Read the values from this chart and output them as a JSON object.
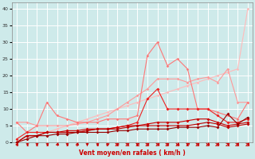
{
  "x": [
    0,
    1,
    2,
    3,
    4,
    5,
    6,
    7,
    8,
    9,
    10,
    11,
    12,
    13,
    14,
    15,
    16,
    17,
    18,
    19,
    20,
    21,
    22,
    23
  ],
  "series": [
    {
      "name": "line1_lightest",
      "color": "#ffbbbb",
      "linewidth": 0.8,
      "markersize": 1.8,
      "y": [
        0,
        1,
        2,
        3,
        4,
        5,
        6,
        7,
        8,
        9,
        10,
        11,
        12,
        13,
        14,
        15,
        16,
        17,
        18,
        19,
        20,
        21,
        22,
        40
      ]
    },
    {
      "name": "line2_light_pink",
      "color": "#ff9999",
      "linewidth": 0.8,
      "markersize": 1.8,
      "y": [
        6,
        6,
        5,
        5,
        5,
        5,
        5.5,
        6,
        7,
        8,
        10,
        12,
        14,
        16,
        19,
        19,
        19,
        18,
        19,
        19.5,
        18,
        22,
        12,
        12
      ]
    },
    {
      "name": "line3_medium",
      "color": "#ff7777",
      "linewidth": 0.8,
      "markersize": 1.8,
      "y": [
        6,
        3,
        5,
        12,
        8,
        7,
        6,
        6,
        6,
        7,
        7,
        7,
        8,
        26,
        30,
        23,
        25,
        22,
        10,
        10,
        9,
        8,
        7,
        12
      ]
    },
    {
      "name": "line4_red",
      "color": "#ee2222",
      "linewidth": 0.8,
      "markersize": 2.0,
      "y": [
        1,
        3,
        3,
        3,
        3,
        3,
        3,
        3.5,
        4,
        4,
        4.5,
        5,
        6,
        13,
        16,
        10,
        10,
        10,
        10,
        10,
        8,
        6,
        6,
        7
      ]
    },
    {
      "name": "line5_dark_red1",
      "color": "#cc0000",
      "linewidth": 0.8,
      "markersize": 2.0,
      "y": [
        0,
        2,
        2,
        3,
        3,
        3.5,
        3.5,
        4,
        4,
        4,
        4.5,
        5,
        5,
        5.5,
        6,
        6,
        6,
        6.5,
        7,
        7,
        6,
        5,
        5.5,
        6
      ]
    },
    {
      "name": "line6_dark_red2",
      "color": "#bb0000",
      "linewidth": 0.8,
      "markersize": 2.0,
      "y": [
        0,
        2,
        2,
        3,
        3,
        3,
        3,
        3.5,
        4,
        4,
        4,
        4.5,
        5,
        5,
        5,
        5,
        5,
        5,
        5.5,
        6,
        5.5,
        4.5,
        5,
        5.5
      ]
    },
    {
      "name": "line7_darkest",
      "color": "#990000",
      "linewidth": 0.8,
      "markersize": 2.0,
      "y": [
        0,
        1,
        2,
        2,
        2.5,
        2.5,
        3,
        3,
        3,
        3,
        3.5,
        3.5,
        4,
        4,
        4,
        4,
        4.5,
        4.5,
        4.5,
        5,
        4.5,
        8.5,
        5.5,
        7.5
      ]
    }
  ],
  "arrow_directions": [
    225,
    270,
    270,
    270,
    225,
    270,
    225,
    270,
    270,
    270,
    270,
    270,
    270,
    270,
    270,
    270,
    225,
    270,
    270,
    225,
    0,
    270,
    0,
    0
  ],
  "xlabel": "Vent moyen/en rafales ( km/h )",
  "xlim": [
    -0.5,
    23.5
  ],
  "ylim": [
    0,
    42
  ],
  "yticks": [
    0,
    5,
    10,
    15,
    20,
    25,
    30,
    35,
    40
  ],
  "xticks": [
    0,
    1,
    2,
    3,
    4,
    5,
    6,
    7,
    8,
    9,
    10,
    11,
    12,
    13,
    14,
    15,
    16,
    17,
    18,
    19,
    20,
    21,
    22,
    23
  ],
  "bg_color": "#ceeaea",
  "grid_color": "#ffffff",
  "arrow_color": "#cc0000",
  "tick_color": "#cc0000",
  "label_color": "#cc0000"
}
